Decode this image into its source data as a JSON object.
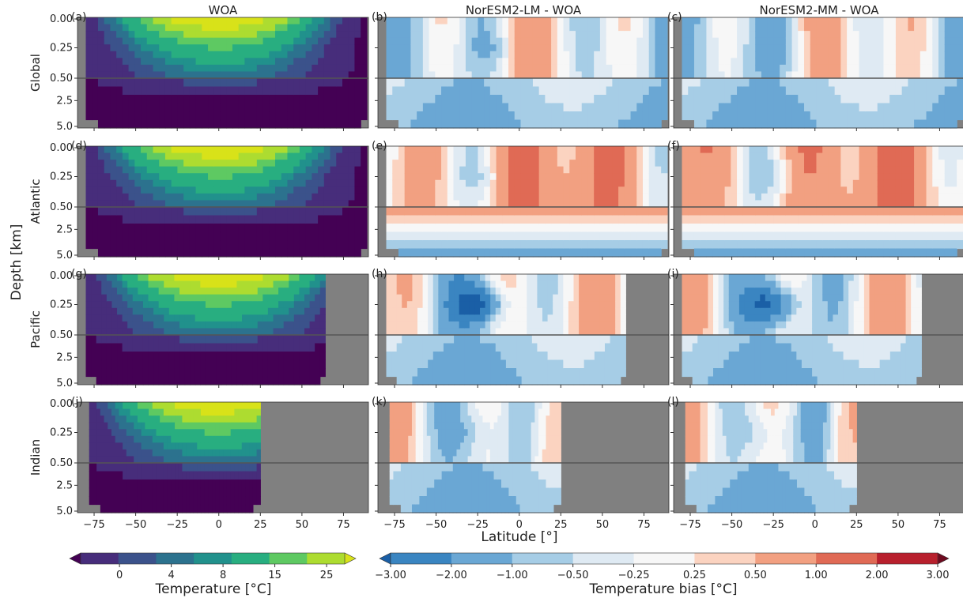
{
  "chart_data": {
    "type": "heatmap",
    "layout": "4 rows x 3 columns of latitude-depth ocean temperature sections",
    "column_titles": [
      "WOA",
      "NorESM2-LM - WOA",
      "NorESM2-MM - WOA"
    ],
    "row_labels": [
      "Global",
      "Atlantic",
      "Pacific",
      "Indian"
    ],
    "panel_labels": [
      "(a)",
      "(b)",
      "(c)",
      "(d)",
      "(e)",
      "(f)",
      "(g)",
      "(h)",
      "(i)",
      "(j)",
      "(k)",
      "(l)"
    ],
    "xlabel": "Latitude [°]",
    "ylabel": "Depth [km]",
    "x_ticks": [
      "−75",
      "−50",
      "−25",
      "0",
      "25",
      "50",
      "75"
    ],
    "x_tick_values": [
      -75,
      -50,
      -25,
      0,
      25,
      50,
      75
    ],
    "xlim": [
      -85,
      90
    ],
    "y_ticks_upper": [
      "0.00",
      "0.25",
      "0.50"
    ],
    "y_ticks_lower": [
      "2.5",
      "5.0"
    ],
    "depth_upper_km": [
      0,
      0.5
    ],
    "depth_lower_km": [
      0.5,
      5.5
    ],
    "basin_extent_deg": {
      "Global": [
        -80,
        89
      ],
      "Atlantic": [
        -80,
        89
      ],
      "Pacific": [
        -80,
        64
      ],
      "Indian": [
        -78,
        25
      ]
    },
    "mask_color": "#808080",
    "colorbar_temperature": {
      "label": "Temperature [°C]",
      "ticks": [
        "0",
        "4",
        "8",
        "15",
        "25"
      ],
      "colors": [
        "#440154",
        "#472d7b",
        "#3b528b",
        "#2c728e",
        "#21918c",
        "#28ae80",
        "#5ec962",
        "#addc30",
        "#d8e219"
      ],
      "extend": "both"
    },
    "colorbar_bias": {
      "label": "Temperature bias [°C]",
      "ticks": [
        "−3.00",
        "−2.00",
        "−1.00",
        "−0.50",
        "−0.25",
        "0.25",
        "0.50",
        "1.00",
        "2.00",
        "3.00"
      ],
      "colors": [
        "#1a5fa6",
        "#3a85c1",
        "#6aa7d4",
        "#a6cde6",
        "#dfeaf3",
        "#f7f7f7",
        "#fbd3c0",
        "#f2a081",
        "#e06a55",
        "#b8202d",
        "#6d0a1f"
      ],
      "extend": "both"
    }
  }
}
